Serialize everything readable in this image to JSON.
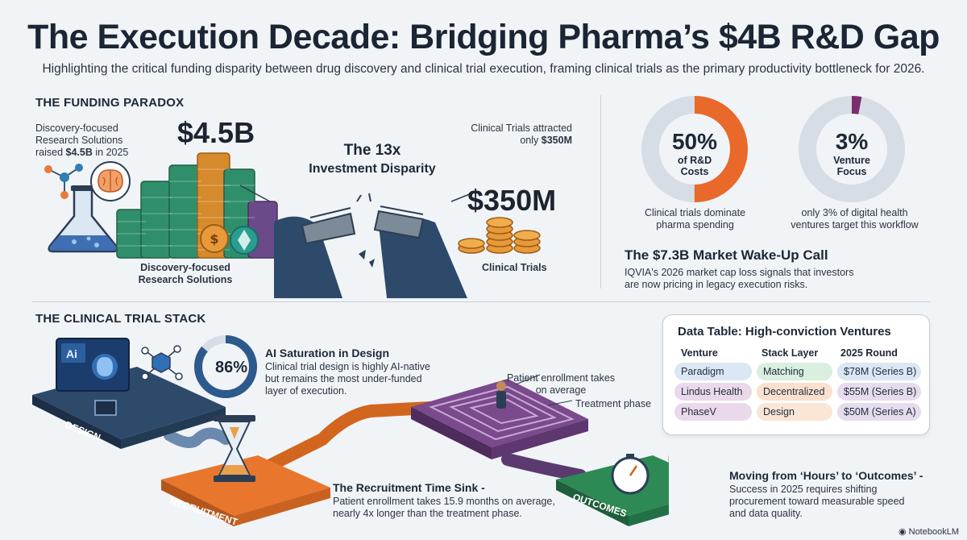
{
  "header": {
    "title": "The Execution Decade: Bridging Pharma’s $4B R&D Gap",
    "subtitle": "Highlighting the critical funding disparity between drug discovery and clinical trial execution, framing clinical trials as the primary productivity bottleneck for 2026."
  },
  "funding": {
    "heading": "THE FUNDING PARADOX",
    "discovery_note_1": "Discovery-focused",
    "discovery_note_2": "Research Solutions",
    "discovery_note_3_pre": "raised ",
    "discovery_note_3_bold": "$4.5B",
    "discovery_note_3_post": " in 2025",
    "discovery_amount": "$4.5B",
    "discovery_label_1": "Discovery-focused",
    "discovery_label_2": "Research Solutions",
    "disparity_line1": "The 13x",
    "disparity_line2": "Investment Disparity",
    "clinical_note_1": "Clinical Trials attracted",
    "clinical_note_2_pre": "only ",
    "clinical_note_2_bold": "$350M",
    "clinical_amount": "$350M",
    "clinical_label": "Clinical Trials"
  },
  "donuts": [
    {
      "pct": "50%",
      "line1": "of R&D",
      "line2": "Costs",
      "caption1": "Clinical trials dominate",
      "caption2": "pharma spending",
      "fraction": 0.5,
      "color": "#e8692a"
    },
    {
      "pct": "3%",
      "line1": "Venture",
      "line2": "Focus",
      "caption1": "only 3% of digital health",
      "caption2": "ventures target this workflow",
      "fraction": 0.03,
      "color": "#7b2d6e"
    }
  ],
  "market": {
    "title": "The $7.3B Market Wake-Up Call",
    "line1": "IQVIA's 2026 market cap loss signals that investors",
    "line2": "are now pricing in legacy execution risks."
  },
  "stack": {
    "heading": "THE CLINICAL TRIAL STACK",
    "ai_pct": "86%",
    "ai_fraction": 0.86,
    "ai_title": "AI Saturation in Design",
    "ai_line1": "Clinical trial design is highly AI-native",
    "ai_line2": "but remains the most under-funded",
    "ai_line3": "layer of execution.",
    "ai_icon": "Ai",
    "design_label": "DESIGN",
    "recruitment_label": "RECRUITMENT",
    "outcomes_label": "OUTCOMES",
    "patient_line1": "Patient enrollment takes",
    "patient_line2": "on average",
    "treatment_phase": "Treatment phase",
    "recruit_title": "The Recruitment Time Sink -",
    "recruit_line1": "Patient enrollment takes 15.9 months on average,",
    "recruit_line2": "nearly 4x longer than the treatment phase.",
    "outcomes_title": "Moving from ‘Hours’ to ‘Outcomes’ -",
    "outcomes_line1": "Success in 2025 requires shifting",
    "outcomes_line2": "procurement toward measurable speed",
    "outcomes_line3": "and data quality."
  },
  "table": {
    "title": "Data Table: High-conviction Ventures",
    "headers": [
      "Venture",
      "Stack Layer",
      "2025 Round"
    ],
    "rows": [
      {
        "venture": "Paradigm",
        "layer": "Matching",
        "round": "$78M (Series B)"
      },
      {
        "venture": "Lindus Health",
        "layer": "Decentralized",
        "round": "$55M (Series B)"
      },
      {
        "venture": "PhaseV",
        "layer": "Design",
        "round": "$50M (Series A)"
      }
    ]
  },
  "footer": {
    "brand": "NotebookLM"
  }
}
